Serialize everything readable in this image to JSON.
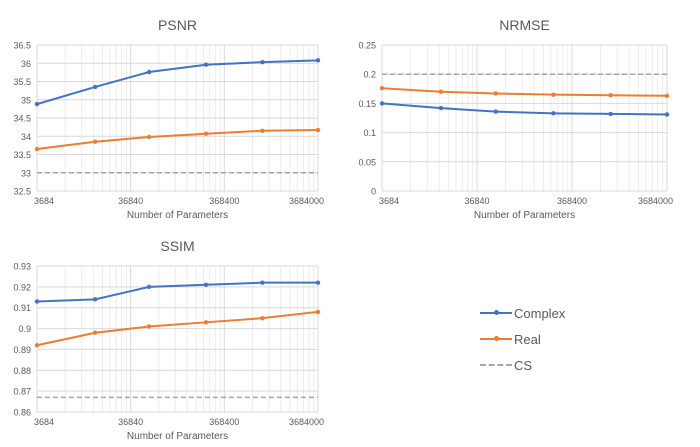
{
  "legend": {
    "items": [
      {
        "name": "Complex",
        "color": "#4472c4",
        "style": "solid-marker"
      },
      {
        "name": "Real",
        "color": "#ed7d31",
        "style": "solid-marker"
      },
      {
        "name": "CS",
        "color": "#a5a5a5",
        "style": "dashed"
      }
    ]
  },
  "chart_data": [
    {
      "id": "psnr",
      "type": "line",
      "title": "PSNR",
      "xlabel": "Number of Parameters",
      "ylabel": "",
      "xscale": "log",
      "xlim": [
        3684,
        3684000
      ],
      "x_ticks": [
        "3684",
        "36840",
        "368400",
        "3684000"
      ],
      "x_tick_values": [
        3684,
        36840,
        368400,
        3684000
      ],
      "ylim": [
        32.5,
        36.5
      ],
      "y_ticks": [
        "32.5",
        "33",
        "33.5",
        "34",
        "34.5",
        "35",
        "35.5",
        "36",
        "36.5"
      ],
      "y_tick_values": [
        32.5,
        33,
        33.5,
        34,
        34.5,
        35,
        35.5,
        36,
        36.5
      ],
      "grid": true,
      "x": [
        3684,
        15400,
        58000,
        235000,
        940000,
        3684000
      ],
      "series": [
        {
          "name": "Complex",
          "color": "#4472c4",
          "values": [
            34.88,
            35.35,
            35.76,
            35.96,
            36.03,
            36.08
          ]
        },
        {
          "name": "Real",
          "color": "#ed7d31",
          "values": [
            33.65,
            33.85,
            33.98,
            34.07,
            34.15,
            34.17
          ]
        },
        {
          "name": "CS",
          "color": "#a5a5a5",
          "dashed": true,
          "constant": 33.0
        }
      ]
    },
    {
      "id": "nrmse",
      "type": "line",
      "title": "NRMSE",
      "xlabel": "Number of Parameters",
      "ylabel": "",
      "xscale": "log",
      "xlim": [
        3684,
        3684000
      ],
      "x_ticks": [
        "3684",
        "36840",
        "368400",
        "3684000"
      ],
      "x_tick_values": [
        3684,
        36840,
        368400,
        3684000
      ],
      "ylim": [
        0,
        0.25
      ],
      "y_ticks": [
        "0",
        "0.05",
        "0.1",
        "0.15",
        "0.2",
        "0.25"
      ],
      "y_tick_values": [
        0,
        0.05,
        0.1,
        0.15,
        0.2,
        0.25
      ],
      "grid": true,
      "x": [
        3684,
        15400,
        58000,
        235000,
        940000,
        3684000
      ],
      "series": [
        {
          "name": "Complex",
          "color": "#4472c4",
          "values": [
            0.15,
            0.142,
            0.136,
            0.133,
            0.132,
            0.131
          ]
        },
        {
          "name": "Real",
          "color": "#ed7d31",
          "values": [
            0.176,
            0.17,
            0.167,
            0.165,
            0.164,
            0.163
          ]
        },
        {
          "name": "CS",
          "color": "#a5a5a5",
          "dashed": true,
          "constant": 0.2
        }
      ]
    },
    {
      "id": "ssim",
      "type": "line",
      "title": "SSIM",
      "xlabel": "Number of Parameters",
      "ylabel": "",
      "xscale": "log",
      "xlim": [
        3684,
        3684000
      ],
      "x_ticks": [
        "3684",
        "36840",
        "368400",
        "3684000"
      ],
      "x_tick_values": [
        3684,
        36840,
        368400,
        3684000
      ],
      "ylim": [
        0.86,
        0.93
      ],
      "y_ticks": [
        "0.86",
        "0.87",
        "0.88",
        "0.89",
        "0.9",
        "0.91",
        "0.92",
        "0.93"
      ],
      "y_tick_values": [
        0.86,
        0.87,
        0.88,
        0.89,
        0.9,
        0.91,
        0.92,
        0.93
      ],
      "grid": true,
      "x": [
        3684,
        15400,
        58000,
        235000,
        940000,
        3684000
      ],
      "series": [
        {
          "name": "Complex",
          "color": "#4472c4",
          "values": [
            0.913,
            0.914,
            0.92,
            0.921,
            0.922,
            0.922
          ]
        },
        {
          "name": "Real",
          "color": "#ed7d31",
          "values": [
            0.892,
            0.898,
            0.901,
            0.903,
            0.905,
            0.908
          ]
        },
        {
          "name": "CS",
          "color": "#a5a5a5",
          "dashed": true,
          "constant": 0.867
        }
      ]
    }
  ]
}
